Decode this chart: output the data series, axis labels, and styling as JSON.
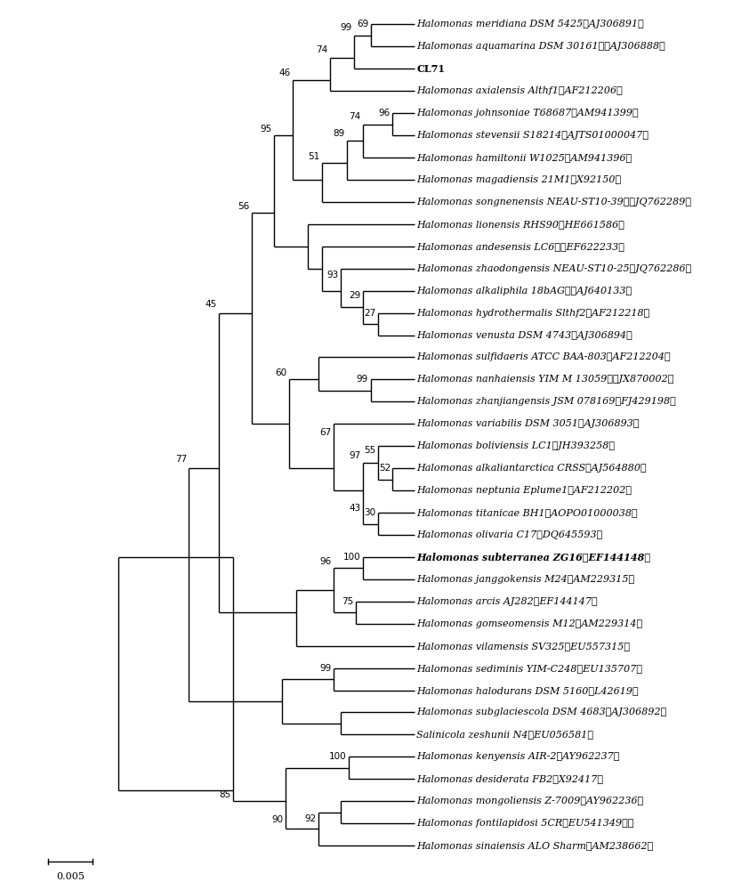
{
  "background_color": "#ffffff",
  "scale_bar_label": "0.005",
  "taxa": [
    {
      "name": "Halomonas meridiana DSM 5425（AJ306891）",
      "bold": false,
      "italic": true,
      "y": 1
    },
    {
      "name": "Halomonas aquamarina DSM 30161　（AJ306888）",
      "bold": false,
      "italic": true,
      "y": 2
    },
    {
      "name": "CL71",
      "bold": true,
      "italic": false,
      "y": 3
    },
    {
      "name": "Halomonas axialensis Althf1（AF212206）",
      "bold": false,
      "italic": true,
      "y": 4
    },
    {
      "name": "Halomonas johnsoniae T68687（AM941399）",
      "bold": false,
      "italic": true,
      "y": 5
    },
    {
      "name": "Halomonas stevensii S18214（AJTS01000047）",
      "bold": false,
      "italic": true,
      "y": 6
    },
    {
      "name": "Halomonas hamiltonii W1025（AM941396）",
      "bold": false,
      "italic": true,
      "y": 7
    },
    {
      "name": "Halomonas magadiensis 21M1（X92150）",
      "bold": false,
      "italic": true,
      "y": 8
    },
    {
      "name": "Halomonas songnenensis NEAU-ST10-39　（JQ762289）",
      "bold": false,
      "italic": true,
      "y": 9
    },
    {
      "name": "Halomonas lionensis RHS90（HE661586）",
      "bold": false,
      "italic": true,
      "y": 10
    },
    {
      "name": "Halomonas andesensis LC6　（EF622233）",
      "bold": false,
      "italic": true,
      "y": 11
    },
    {
      "name": "Halomonas zhaodongensis NEAU-ST10-25（JQ762286）",
      "bold": false,
      "italic": true,
      "y": 12
    },
    {
      "name": "Halomonas alkaliphila 18bAG　（AJ640133）",
      "bold": false,
      "italic": true,
      "y": 13
    },
    {
      "name": "Halomonas hydrothermalis Slthf2（AF212218）",
      "bold": false,
      "italic": true,
      "y": 14
    },
    {
      "name": "Halomonas venusta DSM 4743（AJ306894）",
      "bold": false,
      "italic": true,
      "y": 15
    },
    {
      "name": "Halomonas sulfidaeris ATCC BAA-803（AF212204）",
      "bold": false,
      "italic": true,
      "y": 16
    },
    {
      "name": "Halomonas nanhaiensis YIM M 13059　（JX870002）",
      "bold": false,
      "italic": true,
      "y": 17
    },
    {
      "name": "Halomonas zhanjiangensis JSM 078169（FJ429198）",
      "bold": false,
      "italic": true,
      "y": 18
    },
    {
      "name": "Halomonas variabilis DSM 3051（AJ306893）",
      "bold": false,
      "italic": true,
      "y": 19
    },
    {
      "name": "Halomonas boliviensis LC1（JH393258）",
      "bold": false,
      "italic": true,
      "y": 20
    },
    {
      "name": "Halomonas alkaliantarctica CRSS（AJ564880）",
      "bold": false,
      "italic": true,
      "y": 21
    },
    {
      "name": "Halomonas neptunia Eplume1（AF212202）",
      "bold": false,
      "italic": true,
      "y": 22
    },
    {
      "name": "Halomonas titanicae BH1（AOPO01000038）",
      "bold": false,
      "italic": true,
      "y": 23
    },
    {
      "name": "Halomonas olivaria C17（DQ645593）",
      "bold": false,
      "italic": true,
      "y": 24
    },
    {
      "name": "Halomonas subterranea ZG16（EF144148）",
      "bold": true,
      "italic": true,
      "y": 25
    },
    {
      "name": "Halomonas janggokensis M24（AM229315）",
      "bold": false,
      "italic": true,
      "y": 26
    },
    {
      "name": "Halomonas arcis AJ282（EF144147）",
      "bold": false,
      "italic": true,
      "y": 27
    },
    {
      "name": "Halomonas gomseomensis M12（AM229314）",
      "bold": false,
      "italic": true,
      "y": 28
    },
    {
      "name": "Halomonas vilamensis SV325（EU557315）",
      "bold": false,
      "italic": true,
      "y": 29
    },
    {
      "name": "Halomonas sediminis YIM-C248（EU135707）",
      "bold": false,
      "italic": true,
      "y": 30
    },
    {
      "name": "Halomonas halodurans DSM 5160（L42619）",
      "bold": false,
      "italic": true,
      "y": 31
    },
    {
      "name": "Halomonas subglaciescola DSM 4683（AJ306892）",
      "bold": false,
      "italic": true,
      "y": 32
    },
    {
      "name": "Salinicola zeshunii N4（EU056581）",
      "bold": false,
      "italic": true,
      "y": 33
    },
    {
      "name": "Halomonas kenyensis AIR-2（AY962237）",
      "bold": false,
      "italic": true,
      "y": 34
    },
    {
      "name": "Halomonas desiderata FB2（X92417）",
      "bold": false,
      "italic": true,
      "y": 35
    },
    {
      "name": "Halomonas mongoliensis Z-7009（AY962236）",
      "bold": false,
      "italic": true,
      "y": 36
    },
    {
      "name": "Halomonas fontilapidosi 5CR（EU541349　）",
      "bold": false,
      "italic": true,
      "y": 37
    },
    {
      "name": "Halomonas sinaiensis ALO Sharm（AM238662）",
      "bold": false,
      "italic": true,
      "y": 38
    }
  ],
  "lw": 1.0
}
